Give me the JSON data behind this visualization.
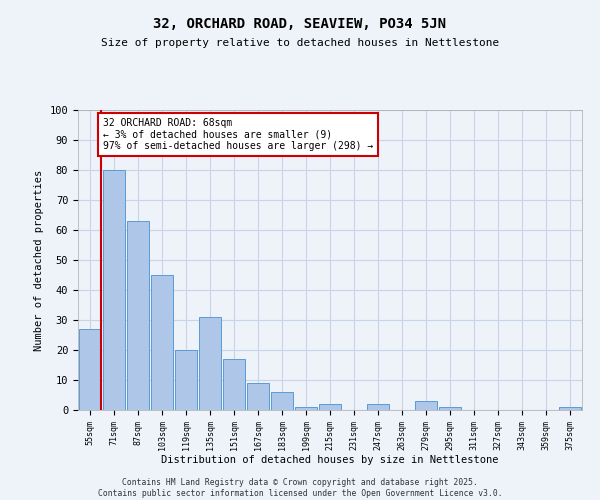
{
  "title": "32, ORCHARD ROAD, SEAVIEW, PO34 5JN",
  "subtitle": "Size of property relative to detached houses in Nettlestone",
  "xlabel": "Distribution of detached houses by size in Nettlestone",
  "ylabel": "Number of detached properties",
  "categories": [
    "55sqm",
    "71sqm",
    "87sqm",
    "103sqm",
    "119sqm",
    "135sqm",
    "151sqm",
    "167sqm",
    "183sqm",
    "199sqm",
    "215sqm",
    "231sqm",
    "247sqm",
    "263sqm",
    "279sqm",
    "295sqm",
    "311sqm",
    "327sqm",
    "343sqm",
    "359sqm",
    "375sqm"
  ],
  "values": [
    27,
    80,
    63,
    45,
    20,
    31,
    17,
    9,
    6,
    1,
    2,
    0,
    2,
    0,
    3,
    1,
    0,
    0,
    0,
    0,
    1
  ],
  "bar_color": "#aec6e8",
  "bar_edge_color": "#5b9bd5",
  "vline_color": "#cc0000",
  "annotation_text": "32 ORCHARD ROAD: 68sqm\n← 3% of detached houses are smaller (9)\n97% of semi-detached houses are larger (298) →",
  "annotation_box_color": "#ffffff",
  "annotation_box_edge_color": "#cc0000",
  "ylim": [
    0,
    100
  ],
  "yticks": [
    0,
    10,
    20,
    30,
    40,
    50,
    60,
    70,
    80,
    90,
    100
  ],
  "grid_color": "#c8d4e8",
  "bg_color": "#eef2f9",
  "footer_line1": "Contains HM Land Registry data © Crown copyright and database right 2025.",
  "footer_line2": "Contains public sector information licensed under the Open Government Licence v3.0."
}
